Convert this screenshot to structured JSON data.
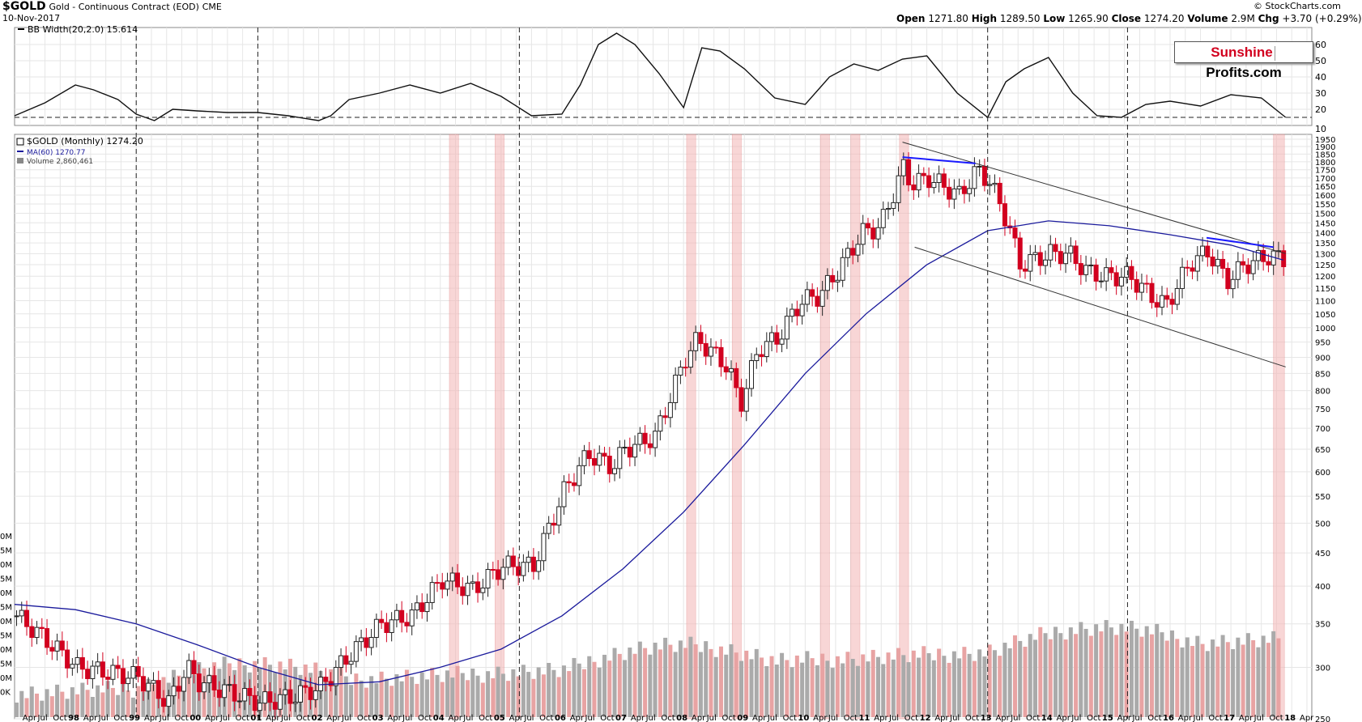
{
  "header": {
    "symbol": "$GOLD",
    "description": "Gold - Continuous Contract (EOD)",
    "exchange": "CME",
    "date": "10-Nov-2017",
    "copyright": "© StockCharts.com",
    "open_label": "Open",
    "open": "1271.80",
    "high_label": "High",
    "high": "1289.50",
    "low_label": "Low",
    "low": "1265.90",
    "close_label": "Close",
    "close": "1274.20",
    "volume_label": "Volume",
    "volume": "2.9M",
    "chg_label": "Chg",
    "chg": "+3.70 (+0.29%)"
  },
  "watermark": {
    "part1": "Sunshine",
    "part2": "Profits.com"
  },
  "colors": {
    "up": "#222222",
    "down": "#d2001f",
    "ma": "#1a1a9c",
    "trend_blue": "#1a1aff",
    "highlight": "#f4b5b5",
    "vol_up": "#aaaaaa",
    "vol_down": "#e8a3a3"
  },
  "chart_data": [
    {
      "type": "line",
      "legend": "BB Width(20,2.0) 15.614",
      "y_ticks": [
        20,
        30,
        40,
        50,
        60
      ],
      "ylim": [
        10,
        68
      ],
      "reference_line": 15,
      "x": [
        1997.0,
        1997.5,
        1998.0,
        1998.3,
        1998.7,
        1999.0,
        1999.3,
        1999.6,
        2000.0,
        2000.5,
        2001.0,
        2001.5,
        2002.0,
        2002.2,
        2002.5,
        2003.0,
        2003.5,
        2004.0,
        2004.5,
        2005.0,
        2005.5,
        2006.0,
        2006.3,
        2006.6,
        2006.9,
        2007.2,
        2007.6,
        2008.0,
        2008.3,
        2008.6,
        2009.0,
        2009.5,
        2010.0,
        2010.4,
        2010.8,
        2011.2,
        2011.6,
        2012.0,
        2012.5,
        2013.0,
        2013.3,
        2013.6,
        2014.0,
        2014.4,
        2014.8,
        2015.2,
        2015.6,
        2016.0,
        2016.5,
        2017.0,
        2017.5,
        2017.9
      ],
      "y": [
        16,
        24,
        35,
        32,
        26,
        17,
        13,
        20,
        19,
        18,
        18,
        16,
        13,
        16,
        26,
        30,
        35,
        30,
        36,
        28,
        16,
        17,
        35,
        60,
        67,
        60,
        42,
        21,
        58,
        56,
        45,
        27,
        23,
        40,
        48,
        44,
        51,
        53,
        30,
        15,
        37,
        45,
        52,
        30,
        16,
        15,
        23,
        25,
        22,
        29,
        27,
        15
      ]
    },
    {
      "type": "candlestick",
      "legend": [
        "$GOLD (Monthly) 1274.20",
        "MA(60) 1270.77",
        "Volume 2,860,461"
      ],
      "y_axis": "log",
      "ylim": [
        250,
        1950
      ],
      "y_ticks": [
        250,
        300,
        350,
        400,
        450,
        500,
        550,
        600,
        650,
        700,
        750,
        800,
        850,
        900,
        950,
        1000,
        1050,
        1100,
        1150,
        1200,
        1250,
        1300,
        1350,
        1400,
        1450,
        1500,
        1550,
        1600,
        1650,
        1700,
        1750,
        1800,
        1850,
        1900,
        1950
      ],
      "price_path_x": [
        1997.0,
        1997.5,
        1998.0,
        1998.5,
        1999.0,
        1999.5,
        1999.8,
        2000.0,
        2000.5,
        2001.0,
        2001.5,
        2002.0,
        2002.5,
        2003.0,
        2003.5,
        2004.0,
        2004.5,
        2005.0,
        2005.5,
        2006.0,
        2006.4,
        2006.8,
        2007.0,
        2007.5,
        2008.0,
        2008.2,
        2008.7,
        2008.9,
        2009.2,
        2009.5,
        2009.9,
        2010.2,
        2010.5,
        2010.9,
        2011.2,
        2011.6,
        2011.7,
        2012.0,
        2012.5,
        2012.8,
        2013.0,
        2013.3,
        2013.5,
        2013.8,
        2014.0,
        2014.3,
        2014.6,
        2014.9,
        2015.3,
        2015.7,
        2015.9,
        2016.3,
        2016.6,
        2016.9,
        2017.2,
        2017.6,
        2017.86
      ],
      "price_path_y": [
        360,
        330,
        300,
        295,
        290,
        265,
        300,
        285,
        275,
        265,
        270,
        280,
        315,
        350,
        360,
        410,
        395,
        430,
        430,
        560,
        640,
        610,
        650,
        680,
        900,
        960,
        870,
        760,
        930,
        960,
        1100,
        1120,
        1220,
        1400,
        1430,
        1780,
        1660,
        1700,
        1600,
        1750,
        1680,
        1450,
        1250,
        1280,
        1300,
        1300,
        1220,
        1200,
        1200,
        1110,
        1080,
        1260,
        1310,
        1180,
        1250,
        1290,
        1274
      ],
      "ma60_x": [
        1997.0,
        1998.0,
        1999.0,
        2000.0,
        2001.0,
        2002.0,
        2003.0,
        2004.0,
        2005.0,
        2006.0,
        2007.0,
        2008.0,
        2009.0,
        2010.0,
        2011.0,
        2012.0,
        2013.0,
        2014.0,
        2015.0,
        2016.0,
        2017.0,
        2017.86
      ],
      "ma60_y": [
        375,
        368,
        350,
        325,
        300,
        282,
        285,
        300,
        320,
        360,
        425,
        520,
        660,
        850,
        1050,
        1250,
        1410,
        1460,
        1435,
        1390,
        1340,
        1271
      ],
      "highlight_periods": [
        [
          2004.15,
          2004.3
        ],
        [
          2004.9,
          2005.05
        ],
        [
          2008.05,
          2008.2
        ],
        [
          2008.8,
          2008.95
        ],
        [
          2010.25,
          2010.4
        ],
        [
          2010.75,
          2010.9
        ],
        [
          2011.55,
          2011.7
        ],
        [
          2017.7,
          2017.88
        ]
      ],
      "cycle_dates": [
        1999.0,
        2001.0,
        2005.3,
        2013.0,
        2015.3
      ],
      "resistance_line": [
        [
          2011.6,
          1930
        ],
        [
          2017.9,
          1300
        ]
      ],
      "support_line": [
        [
          2011.8,
          1330
        ],
        [
          2017.9,
          870
        ]
      ],
      "blue_lines": [
        [
          [
            2011.6,
            1830
          ],
          [
            2012.8,
            1790
          ]
        ],
        [
          [
            2016.6,
            1375
          ],
          [
            2017.7,
            1330
          ]
        ]
      ],
      "volume_left_labels": [
        "0M",
        "5M",
        "0M",
        "5M",
        "0M",
        "5M",
        "0M",
        "5M",
        "0M",
        "5M",
        "0M",
        "0K"
      ],
      "x_axis_labels": [
        "Apr",
        "Jul",
        "Oct",
        "98",
        "Apr",
        "Jul",
        "Oct",
        "99",
        "Apr",
        "Jul",
        "Oct",
        "00",
        "Apr",
        "Jul",
        "Oct",
        "01",
        "Apr",
        "Jul",
        "Oct",
        "02",
        "Apr",
        "Jul",
        "Oct",
        "03",
        "Apr",
        "Jul",
        "Oct",
        "04",
        "Apr",
        "Jul",
        "Oct",
        "05",
        "Apr",
        "Jul",
        "Oct",
        "06",
        "Apr",
        "Jul",
        "Oct",
        "07",
        "Apr",
        "Jul",
        "Oct",
        "08",
        "Apr",
        "Jul",
        "Oct",
        "09",
        "Apr",
        "Jul",
        "Oct",
        "10",
        "Apr",
        "Jul",
        "Oct",
        "11",
        "Apr",
        "Jul",
        "Oct",
        "12",
        "Apr",
        "Jul",
        "Oct",
        "13",
        "Apr",
        "Jul",
        "Oct",
        "14",
        "Apr",
        "Jul",
        "Oct",
        "15",
        "Apr",
        "Jul",
        "Oct",
        "16",
        "Apr",
        "Jul",
        "Oct",
        "17",
        "Apr",
        "Jul",
        "Oct",
        "18",
        "Apr"
      ]
    }
  ]
}
